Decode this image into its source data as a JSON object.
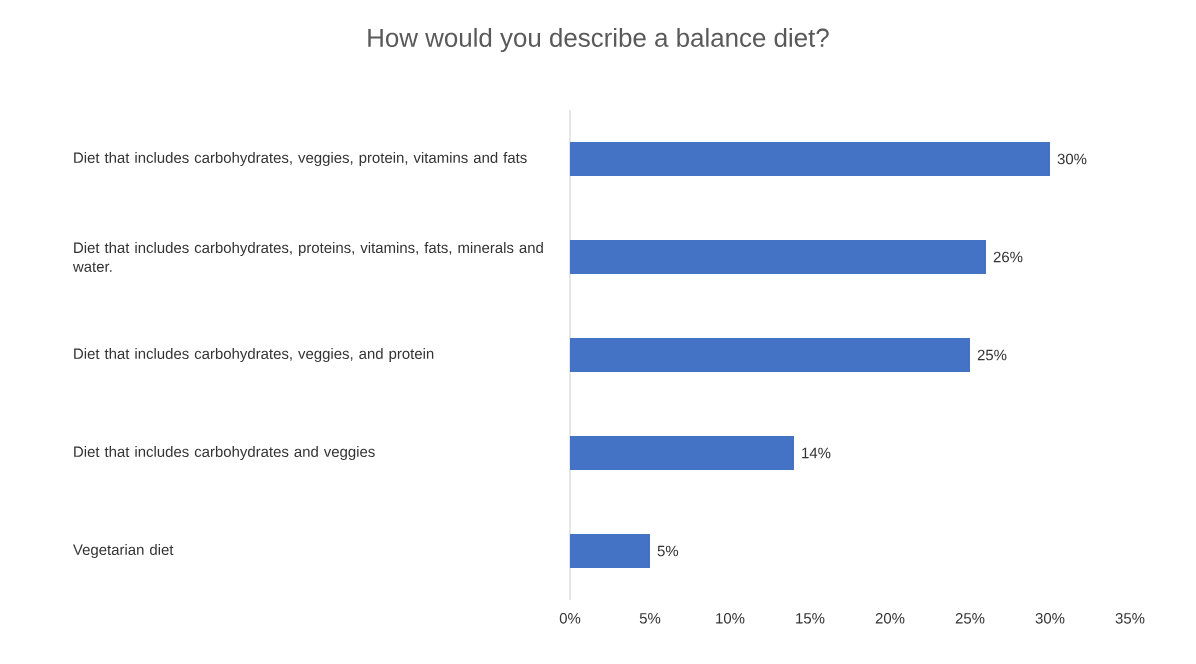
{
  "chart_data": {
    "type": "bar",
    "orientation": "horizontal",
    "title": "How would you describe a balance diet?",
    "categories": [
      "Diet that includes carbohydrates, veggies, protein, vitamins and fats",
      "Diet that includes carbohydrates, proteins, vitamins, fats, minerals and water.",
      "Diet that includes carbohydrates, veggies, and protein",
      "Diet that includes carbohydrates and veggies",
      "Vegetarian diet"
    ],
    "values": [
      30,
      26,
      25,
      14,
      5
    ],
    "value_labels": [
      "30%",
      "26%",
      "25%",
      "14%",
      "5%"
    ],
    "color": "#4472c4",
    "xlim": [
      0,
      35
    ],
    "xticks": [
      {
        "value": 0,
        "label": "0%"
      },
      {
        "value": 5,
        "label": "5%"
      },
      {
        "value": 10,
        "label": "10%"
      },
      {
        "value": 15,
        "label": "15%"
      },
      {
        "value": 20,
        "label": "20%"
      },
      {
        "value": 25,
        "label": "25%"
      },
      {
        "value": 30,
        "label": "30%"
      },
      {
        "value": 35,
        "label": "35%"
      }
    ]
  }
}
